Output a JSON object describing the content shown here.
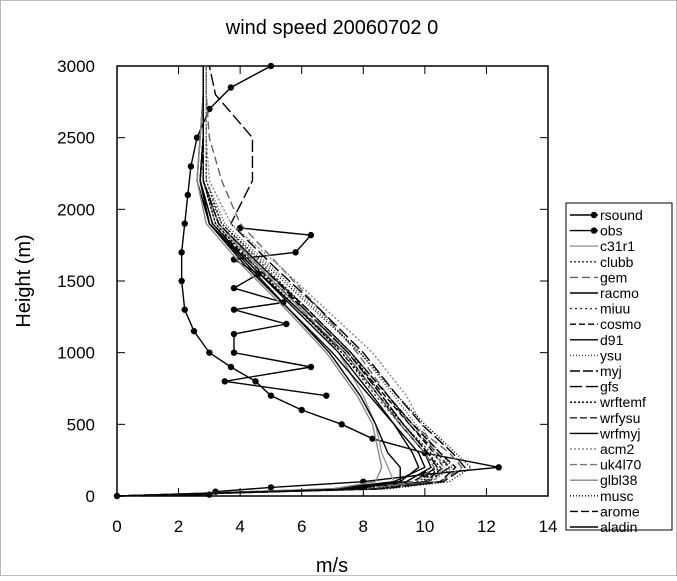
{
  "chart_data": {
    "type": "profile",
    "title": "wind speed 20060702 0",
    "x_label": "m/s",
    "y_label": "Height (m)",
    "xlim": [
      0,
      14
    ],
    "xticks": [
      0,
      2,
      4,
      6,
      8,
      10,
      12,
      14
    ],
    "ylim": [
      0,
      3000
    ],
    "yticks": [
      0,
      500,
      1000,
      1500,
      2000,
      2500,
      3000
    ],
    "series": [
      {
        "name": "rsound",
        "color": "#000000",
        "dash": "",
        "markers": true,
        "heights": [
          0,
          10,
          30,
          60,
          100,
          150,
          200,
          300,
          400,
          500,
          600,
          700,
          800,
          900,
          1000,
          1150,
          1300,
          1500,
          1700,
          1900,
          2100,
          2300,
          2500,
          2700,
          2850,
          3000
        ],
        "values": [
          0,
          3,
          3.2,
          5,
          8,
          10,
          12.4,
          10,
          8.3,
          7.3,
          6,
          5,
          4.5,
          3.7,
          3,
          2.5,
          2.2,
          2.1,
          2.1,
          2.2,
          2.3,
          2.4,
          2.6,
          3,
          3.7,
          5
        ]
      },
      {
        "name": "obs",
        "color": "#000000",
        "dash": "",
        "markers": true,
        "heights": [
          700,
          800,
          900,
          1000,
          1130,
          1200,
          1300,
          1350,
          1450,
          1550,
          1650,
          1700,
          1820,
          1870
        ],
        "values": [
          6.8,
          3.5,
          6.3,
          3.8,
          3.8,
          5.5,
          3.8,
          5.4,
          3.8,
          4.6,
          3.8,
          5.8,
          6.3,
          4
        ]
      },
      {
        "name": "c31r1",
        "color": "#999999",
        "dash": "",
        "heights": [
          0,
          50,
          100,
          200,
          300,
          500,
          700,
          1000,
          1300,
          1600,
          1900,
          2200,
          2500,
          2800,
          3000
        ],
        "values": [
          0,
          7.5,
          9,
          8.8,
          8.6,
          8.4,
          8,
          7.2,
          6,
          4.6,
          3.2,
          2.8,
          2.8,
          2.8,
          2.8
        ]
      },
      {
        "name": "clubb",
        "color": "#333333",
        "dash": "2,2",
        "heights": [
          0,
          50,
          100,
          200,
          300,
          500,
          700,
          1000,
          1300,
          1600,
          1900,
          2200,
          2500,
          2800,
          3000
        ],
        "values": [
          0,
          8,
          10,
          10.8,
          10.2,
          9.3,
          8.6,
          7.6,
          6.2,
          4.8,
          3.4,
          2.9,
          2.9,
          2.9,
          2.9
        ]
      },
      {
        "name": "gem",
        "color": "#666666",
        "dash": "8,4",
        "heights": [
          0,
          50,
          100,
          200,
          300,
          500,
          700,
          1000,
          1300,
          1600,
          1900,
          2200,
          2500,
          2800,
          3000
        ],
        "values": [
          0,
          8.5,
          10.5,
          11.2,
          10.8,
          9.6,
          8.8,
          7.8,
          6.6,
          5.3,
          4,
          3.4,
          3,
          2.9,
          2.9
        ]
      },
      {
        "name": "racmo",
        "color": "#000000",
        "dash": "",
        "heights": [
          0,
          50,
          100,
          200,
          300,
          500,
          700,
          1000,
          1300,
          1600,
          1900,
          2200,
          2500,
          2800,
          3000
        ],
        "values": [
          0,
          7,
          9,
          10,
          9.8,
          9,
          8.2,
          7,
          5.6,
          4.2,
          3,
          2.7,
          2.8,
          2.8,
          2.8
        ]
      },
      {
        "name": "miuu",
        "color": "#333333",
        "dash": "2,3",
        "heights": [
          0,
          50,
          100,
          200,
          300,
          500,
          700,
          1000,
          1300,
          1600,
          1900,
          2200,
          2500,
          2800,
          3000
        ],
        "values": [
          0,
          8,
          9.8,
          10.4,
          10,
          9.2,
          8.4,
          7.3,
          6,
          4.6,
          3.3,
          2.8,
          2.8,
          2.8,
          2.8
        ]
      },
      {
        "name": "cosmo",
        "color": "#000000",
        "dash": "6,3",
        "heights": [
          0,
          50,
          100,
          200,
          300,
          500,
          700,
          1000,
          1300,
          1600,
          1900,
          2200,
          2500,
          2800,
          3000
        ],
        "values": [
          0,
          8.2,
          10,
          10.6,
          10.3,
          9.5,
          8.7,
          7.5,
          6.1,
          4.5,
          3.1,
          2.7,
          2.8,
          2.8,
          2.8
        ]
      },
      {
        "name": "d91",
        "color": "#000000",
        "dash": "",
        "heights": [
          0,
          50,
          100,
          200,
          300,
          500,
          700,
          1000,
          1300,
          1600,
          1900,
          2200,
          2500,
          2800,
          3000
        ],
        "values": [
          0,
          7.6,
          9.4,
          10.2,
          10,
          9.2,
          8.5,
          7.4,
          5.9,
          4.4,
          3,
          2.6,
          2.7,
          2.8,
          2.8
        ]
      },
      {
        "name": "ysu",
        "color": "#444444",
        "dash": "1,2",
        "heights": [
          0,
          50,
          100,
          200,
          300,
          500,
          700,
          1000,
          1300,
          1600,
          1900,
          2200,
          2500,
          2800,
          3000
        ],
        "values": [
          0,
          8.4,
          10.2,
          10.9,
          10.5,
          9.7,
          9,
          7.9,
          6.5,
          5,
          3.5,
          2.9,
          2.9,
          2.9,
          2.9
        ]
      },
      {
        "name": "myj",
        "color": "#000000",
        "dash": "10,3",
        "heights": [
          0,
          50,
          100,
          200,
          300,
          500,
          700,
          1000,
          1300,
          1600,
          1900,
          2200,
          2500,
          2800,
          3000
        ],
        "values": [
          0,
          7.8,
          9.6,
          10.4,
          10.1,
          9.3,
          8.6,
          7.5,
          6.1,
          4.7,
          3.3,
          2.8,
          2.8,
          2.8,
          2.8
        ]
      },
      {
        "name": "gfs",
        "color": "#000000",
        "dash": "12,4",
        "heights": [
          0,
          50,
          100,
          200,
          300,
          500,
          700,
          1000,
          1300,
          1600,
          1900,
          2200,
          2500,
          2800,
          3000
        ],
        "values": [
          0,
          8.6,
          10.6,
          11.3,
          10.9,
          9.9,
          9.1,
          8,
          6.6,
          5.1,
          3.7,
          4.4,
          4.4,
          3.2,
          3
        ]
      },
      {
        "name": "wrftemf",
        "color": "#000000",
        "dash": "2,2",
        "heights": [
          0,
          50,
          100,
          200,
          300,
          500,
          700,
          1000,
          1300,
          1600,
          1900,
          2200,
          2500,
          2800,
          3000
        ],
        "values": [
          0,
          8.1,
          9.9,
          10.5,
          10.1,
          9.3,
          8.5,
          7.3,
          5.9,
          4.5,
          3.2,
          2.8,
          2.8,
          2.8,
          2.8
        ]
      },
      {
        "name": "wrfysu",
        "color": "#222222",
        "dash": "7,3",
        "heights": [
          0,
          50,
          100,
          200,
          300,
          500,
          700,
          1000,
          1300,
          1600,
          1900,
          2200,
          2500,
          2800,
          3000
        ],
        "values": [
          0,
          8.3,
          10.1,
          10.8,
          10.4,
          9.5,
          8.8,
          7.6,
          6.2,
          4.7,
          3.3,
          2.8,
          2.8,
          2.8,
          2.8
        ]
      },
      {
        "name": "wrfmyj",
        "color": "#000000",
        "dash": "",
        "heights": [
          0,
          50,
          100,
          200,
          300,
          500,
          700,
          1000,
          1300,
          1600,
          1900,
          2200,
          2500,
          2800,
          3000
        ],
        "values": [
          0,
          7.4,
          9.2,
          9.8,
          9.6,
          9,
          8.3,
          7.2,
          5.8,
          4.4,
          3.1,
          2.7,
          2.8,
          2.8,
          2.8
        ]
      },
      {
        "name": "acm2",
        "color": "#888888",
        "dash": "2,2",
        "heights": [
          0,
          50,
          100,
          200,
          300,
          500,
          700,
          1000,
          1300,
          1600,
          1900,
          2200,
          2500,
          2800,
          3000
        ],
        "values": [
          0,
          8.3,
          10.3,
          10.6,
          10.3,
          9.9,
          9.4,
          8.3,
          6.8,
          5.3,
          3.7,
          3,
          2.9,
          2.9,
          2.9
        ]
      },
      {
        "name": "uk4l70",
        "color": "#777777",
        "dash": "7,3",
        "heights": [
          0,
          50,
          100,
          200,
          300,
          500,
          700,
          1000,
          1300,
          1600,
          1900,
          2200,
          2500,
          2800,
          3000
        ],
        "values": [
          0,
          8,
          9.7,
          10.3,
          10,
          9.2,
          8.5,
          7.4,
          6,
          4.6,
          3.3,
          2.8,
          2.8,
          2.8,
          2.8
        ]
      },
      {
        "name": "glbl38",
        "color": "#888888",
        "dash": "",
        "heights": [
          0,
          50,
          100,
          200,
          300,
          500,
          700,
          1000,
          1300,
          1600,
          1900,
          2200,
          2500,
          2800,
          3000
        ],
        "values": [
          0,
          7,
          8.4,
          8.6,
          8.5,
          8.3,
          7.8,
          6.8,
          5.5,
          4.1,
          2.9,
          2.6,
          2.7,
          2.8,
          2.8
        ]
      },
      {
        "name": "musc",
        "color": "#000000",
        "dash": "1,2",
        "heights": [
          0,
          50,
          100,
          200,
          300,
          500,
          700,
          1000,
          1300,
          1600,
          1900,
          2200,
          2500,
          2800,
          3000
        ],
        "values": [
          0,
          8.8,
          10.8,
          11.5,
          11,
          10,
          9.1,
          7.9,
          6.4,
          4.9,
          3.4,
          2.8,
          2.8,
          2.8,
          2.8
        ]
      },
      {
        "name": "arome",
        "color": "#000000",
        "dash": "8,3",
        "heights": [
          0,
          50,
          100,
          200,
          300,
          500,
          700,
          1000,
          1300,
          1600,
          1900,
          2200,
          2500,
          2800,
          3000
        ],
        "values": [
          0,
          8.5,
          10.5,
          11,
          10.5,
          9.6,
          8.8,
          7.6,
          6.2,
          4.7,
          3.3,
          2.8,
          2.8,
          2.8,
          2.8
        ]
      },
      {
        "name": "aladin",
        "color": "#000000",
        "dash": "",
        "heights": [
          0,
          50,
          100,
          200,
          300,
          500,
          700,
          1000,
          1300,
          1600,
          1900,
          2200,
          2500,
          2800,
          3000
        ],
        "values": [
          0,
          7.8,
          9.2,
          9.2,
          8.8,
          8.4,
          7.9,
          6.9,
          5.6,
          4.3,
          3,
          2.7,
          2.8,
          2.8,
          2.8
        ]
      }
    ]
  }
}
